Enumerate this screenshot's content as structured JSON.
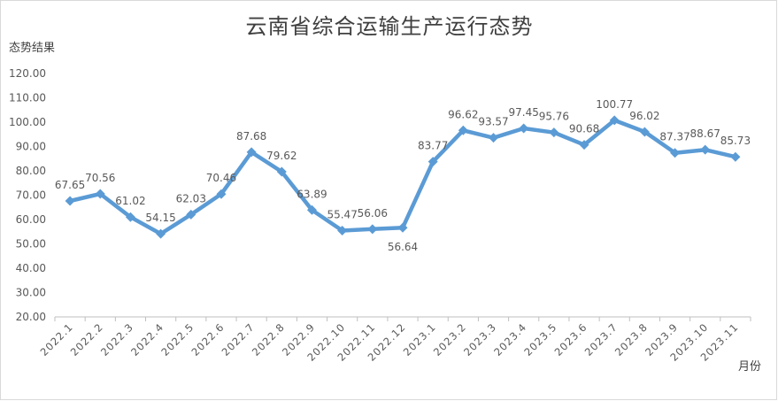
{
  "chart_data": {
    "type": "line",
    "title": "云南省综合运输生产运行态势",
    "ylabel": "态势结果",
    "xlabel": "月份",
    "ylim": [
      20,
      120
    ],
    "yticks": [
      "20.00",
      "30.00",
      "40.00",
      "50.00",
      "60.00",
      "70.00",
      "80.00",
      "90.00",
      "100.00",
      "110.00",
      "120.00"
    ],
    "grid": false,
    "legend": "none",
    "line_color": "#5b9bd5",
    "categories": [
      "2022.1",
      "2022.2",
      "2022.3",
      "2022.4",
      "2022.5",
      "2022.6",
      "2022.7",
      "2022.8",
      "2022.9",
      "2022.10",
      "2022.11",
      "2022.12",
      "2023.1",
      "2023.2",
      "2023.3",
      "2023.4",
      "2023.5",
      "2023.6",
      "2023.7",
      "2023.8",
      "2023.9",
      "2023.10",
      "2023.11"
    ],
    "series": [
      {
        "values": [
          67.65,
          70.56,
          61.02,
          54.15,
          62.03,
          70.46,
          87.68,
          79.62,
          63.89,
          55.47,
          56.06,
          56.64,
          83.77,
          96.62,
          93.57,
          97.45,
          95.76,
          90.68,
          100.77,
          96.02,
          87.37,
          88.67,
          85.73
        ],
        "labels": [
          "67.65",
          "70.56",
          "61.02",
          "54.15",
          "62.03",
          "70.46",
          "87.68",
          "79.62",
          "63.89",
          "55.47",
          "56.06",
          "56.64",
          "83.77",
          "96.62",
          "93.57",
          "97.45",
          "95.76",
          "90.68",
          "100.77",
          "96.02",
          "87.37",
          "88.67",
          "85.73"
        ]
      }
    ]
  }
}
